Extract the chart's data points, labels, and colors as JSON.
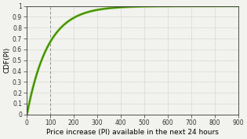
{
  "title": "",
  "xlabel": "Price increase (PI) available in the next 24 hours",
  "ylabel": "CDF(PI)",
  "xlim": [
    0,
    900
  ],
  "ylim": [
    0,
    1
  ],
  "xticks": [
    0,
    100,
    200,
    300,
    400,
    500,
    600,
    700,
    800,
    900
  ],
  "yticks": [
    0,
    0.1,
    0.2,
    0.3,
    0.4,
    0.5,
    0.6,
    0.7,
    0.8,
    0.9,
    1.0
  ],
  "ytick_labels": [
    "0",
    "0.1",
    "0.2",
    "0.3",
    "0.4",
    "0.5",
    "0.6",
    "0.7",
    "0.8",
    "0.9",
    "1"
  ],
  "line_color": "#3a7d0a",
  "line_color2": "#7dc832",
  "vline_color": "#888888",
  "vline_x": 100,
  "grid_color": "#b0b0b0",
  "background_color": "#f2f2ee",
  "axes_color": "#333333",
  "cdf_scale": 90,
  "figsize": [
    3.15,
    1.77
  ],
  "dpi": 100,
  "xlabel_fontsize": 6.5,
  "ylabel_fontsize": 6.5,
  "tick_fontsize": 5.5
}
